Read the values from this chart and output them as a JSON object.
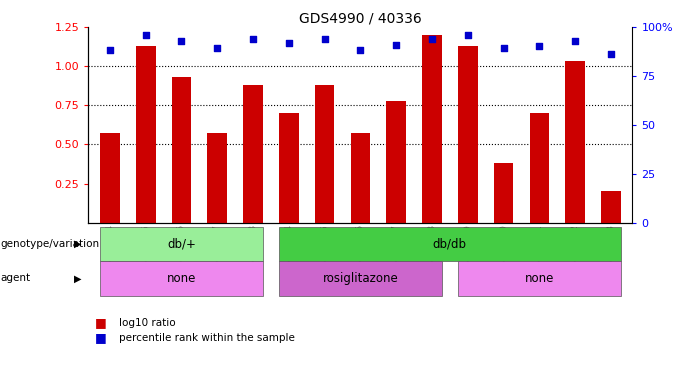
{
  "title": "GDS4990 / 40336",
  "samples": [
    "GSM904674",
    "GSM904675",
    "GSM904676",
    "GSM904677",
    "GSM904678",
    "GSM904684",
    "GSM904685",
    "GSM904686",
    "GSM904687",
    "GSM904688",
    "GSM904679",
    "GSM904680",
    "GSM904681",
    "GSM904682",
    "GSM904683"
  ],
  "log10_ratio": [
    0.57,
    1.13,
    0.93,
    0.57,
    0.88,
    0.7,
    0.88,
    0.57,
    0.78,
    1.2,
    1.13,
    0.38,
    0.7,
    1.03,
    0.2
  ],
  "percentile_rank": [
    88,
    96,
    93,
    89,
    94,
    92,
    94,
    88,
    91,
    94,
    96,
    89,
    90,
    93,
    86
  ],
  "bar_color": "#cc0000",
  "dot_color": "#0000cc",
  "ylim_left": [
    0.0,
    1.25
  ],
  "ylim_right": [
    0,
    100
  ],
  "yticks_left": [
    0.25,
    0.5,
    0.75,
    1.0,
    1.25
  ],
  "yticks_right": [
    0,
    25,
    50,
    75,
    100
  ],
  "genotype_groups": [
    {
      "label": "db/+",
      "start": 0,
      "end": 4,
      "color": "#99ee99"
    },
    {
      "label": "db/db",
      "start": 5,
      "end": 14,
      "color": "#44cc44"
    }
  ],
  "agent_groups": [
    {
      "label": "none",
      "start": 0,
      "end": 4,
      "color": "#ee88ee"
    },
    {
      "label": "rosiglitazone",
      "start": 5,
      "end": 9,
      "color": "#cc66cc"
    },
    {
      "label": "none",
      "start": 10,
      "end": 14,
      "color": "#ee88ee"
    }
  ],
  "genotype_label": "genotype/variation",
  "agent_label": "agent",
  "legend_red": "log10 ratio",
  "legend_blue": "percentile rank within the sample",
  "background_color": "#ffffff",
  "plot_bg_color": "#ffffff"
}
